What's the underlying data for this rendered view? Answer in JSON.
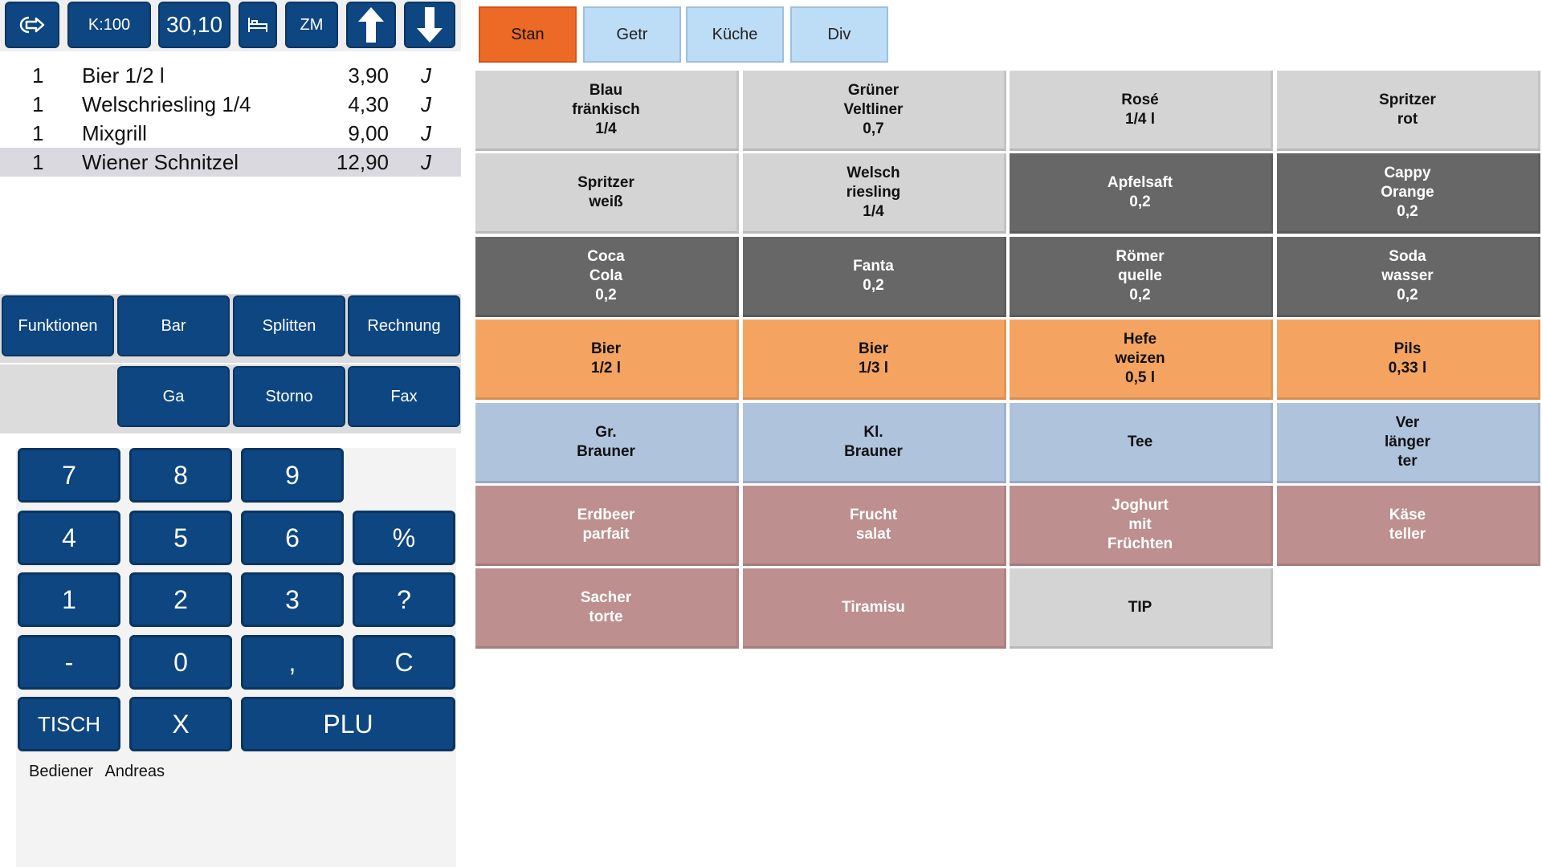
{
  "colors": {
    "button_blue": "#0d4680",
    "tab_active": "#ec6a25",
    "tab_inactive": "#bddcf6",
    "light_gray": "#d4d4d4",
    "dark_gray": "#676767",
    "orange": "#f4a460",
    "light_blue": "#afc3dd",
    "dusty_rose": "#bd8f8f"
  },
  "toolbar": {
    "logout_icon": "logout-arrow-icon",
    "table_label": "K:100",
    "total_label": "30,10",
    "bed_icon": "bed-icon",
    "room_label": "ZM",
    "up_icon": "arrow-up-icon",
    "down_icon": "arrow-down-icon"
  },
  "order": {
    "items": [
      {
        "qty": "1",
        "name": "Bier 1/2 l",
        "price": "3,90",
        "flag": "J"
      },
      {
        "qty": "1",
        "name": "Welschriesling 1/4",
        "price": "4,30",
        "flag": "J"
      },
      {
        "qty": "1",
        "name": "Mixgrill",
        "price": "9,00",
        "flag": "J"
      },
      {
        "qty": "1",
        "name": "Wiener Schnitzel",
        "price": "12,90",
        "flag": "J",
        "selected": true
      }
    ]
  },
  "functions": {
    "row1": [
      "Funktionen",
      "Bar",
      "Splitten",
      "Rechnung"
    ],
    "row2": [
      "Ga",
      "Storno",
      "Fax"
    ]
  },
  "numpad": {
    "keys": [
      "7",
      "8",
      "9",
      "4",
      "5",
      "6",
      "%",
      "1",
      "2",
      "3",
      "?",
      "-",
      "0",
      ",",
      "C",
      "TISCH",
      "X",
      "PLU"
    ]
  },
  "operator": {
    "label": "Bediener",
    "name": "Andreas"
  },
  "categories": [
    {
      "label": "Stan",
      "active": true
    },
    {
      "label": "Getr",
      "active": false
    },
    {
      "label": "Küche",
      "active": false
    },
    {
      "label": "Div",
      "active": false
    }
  ],
  "products": [
    {
      "lines": [
        "Blau",
        "fränkisch",
        "1/4"
      ],
      "color": "#d4d4d4",
      "text": "#111111"
    },
    {
      "lines": [
        "Grüner",
        "Veltliner",
        "0,7"
      ],
      "color": "#d4d4d4",
      "text": "#111111"
    },
    {
      "lines": [
        "Rosé",
        "1/4 l"
      ],
      "color": "#d4d4d4",
      "text": "#111111"
    },
    {
      "lines": [
        "Spritzer",
        "rot"
      ],
      "color": "#d4d4d4",
      "text": "#111111"
    },
    {
      "lines": [
        "Spritzer",
        "weiß"
      ],
      "color": "#d4d4d4",
      "text": "#111111"
    },
    {
      "lines": [
        "Welsch",
        "riesling",
        "1/4"
      ],
      "color": "#d4d4d4",
      "text": "#111111"
    },
    {
      "lines": [
        "Apfelsaft",
        "0,2"
      ],
      "color": "#676767",
      "text": "#ffffff"
    },
    {
      "lines": [
        "Cappy",
        "Orange",
        "0,2"
      ],
      "color": "#676767",
      "text": "#ffffff"
    },
    {
      "lines": [
        "Coca",
        "Cola",
        "0,2"
      ],
      "color": "#676767",
      "text": "#ffffff"
    },
    {
      "lines": [
        "Fanta",
        "0,2"
      ],
      "color": "#676767",
      "text": "#ffffff"
    },
    {
      "lines": [
        "Römer",
        "quelle",
        "0,2"
      ],
      "color": "#676767",
      "text": "#ffffff"
    },
    {
      "lines": [
        "Soda",
        "wasser",
        "0,2"
      ],
      "color": "#676767",
      "text": "#ffffff"
    },
    {
      "lines": [
        "Bier",
        "1/2 l"
      ],
      "color": "#f4a460",
      "text": "#111111"
    },
    {
      "lines": [
        "Bier",
        "1/3 l"
      ],
      "color": "#f4a460",
      "text": "#111111"
    },
    {
      "lines": [
        "Hefe",
        "weizen",
        "0,5 l"
      ],
      "color": "#f4a460",
      "text": "#111111"
    },
    {
      "lines": [
        "Pils",
        "0,33 l"
      ],
      "color": "#f4a460",
      "text": "#111111"
    },
    {
      "lines": [
        "Gr.",
        "Brauner"
      ],
      "color": "#afc3dd",
      "text": "#111111"
    },
    {
      "lines": [
        "Kl.",
        "Brauner"
      ],
      "color": "#afc3dd",
      "text": "#111111"
    },
    {
      "lines": [
        "Tee"
      ],
      "color": "#afc3dd",
      "text": "#111111"
    },
    {
      "lines": [
        "Ver",
        "länger",
        "ter"
      ],
      "color": "#afc3dd",
      "text": "#111111"
    },
    {
      "lines": [
        "Erdbeer",
        "parfait"
      ],
      "color": "#bd8f8f",
      "text": "#ffffff"
    },
    {
      "lines": [
        "Frucht",
        "salat"
      ],
      "color": "#bd8f8f",
      "text": "#ffffff"
    },
    {
      "lines": [
        "Joghurt",
        "mit",
        "Früchten"
      ],
      "color": "#bd8f8f",
      "text": "#ffffff"
    },
    {
      "lines": [
        "Käse",
        "teller"
      ],
      "color": "#bd8f8f",
      "text": "#ffffff"
    },
    {
      "lines": [
        "Sacher",
        "torte"
      ],
      "color": "#bd8f8f",
      "text": "#ffffff"
    },
    {
      "lines": [
        "Tiramisu"
      ],
      "color": "#bd8f8f",
      "text": "#ffffff"
    },
    {
      "lines": [
        "TIP"
      ],
      "color": "#d4d4d4",
      "text": "#111111"
    }
  ]
}
